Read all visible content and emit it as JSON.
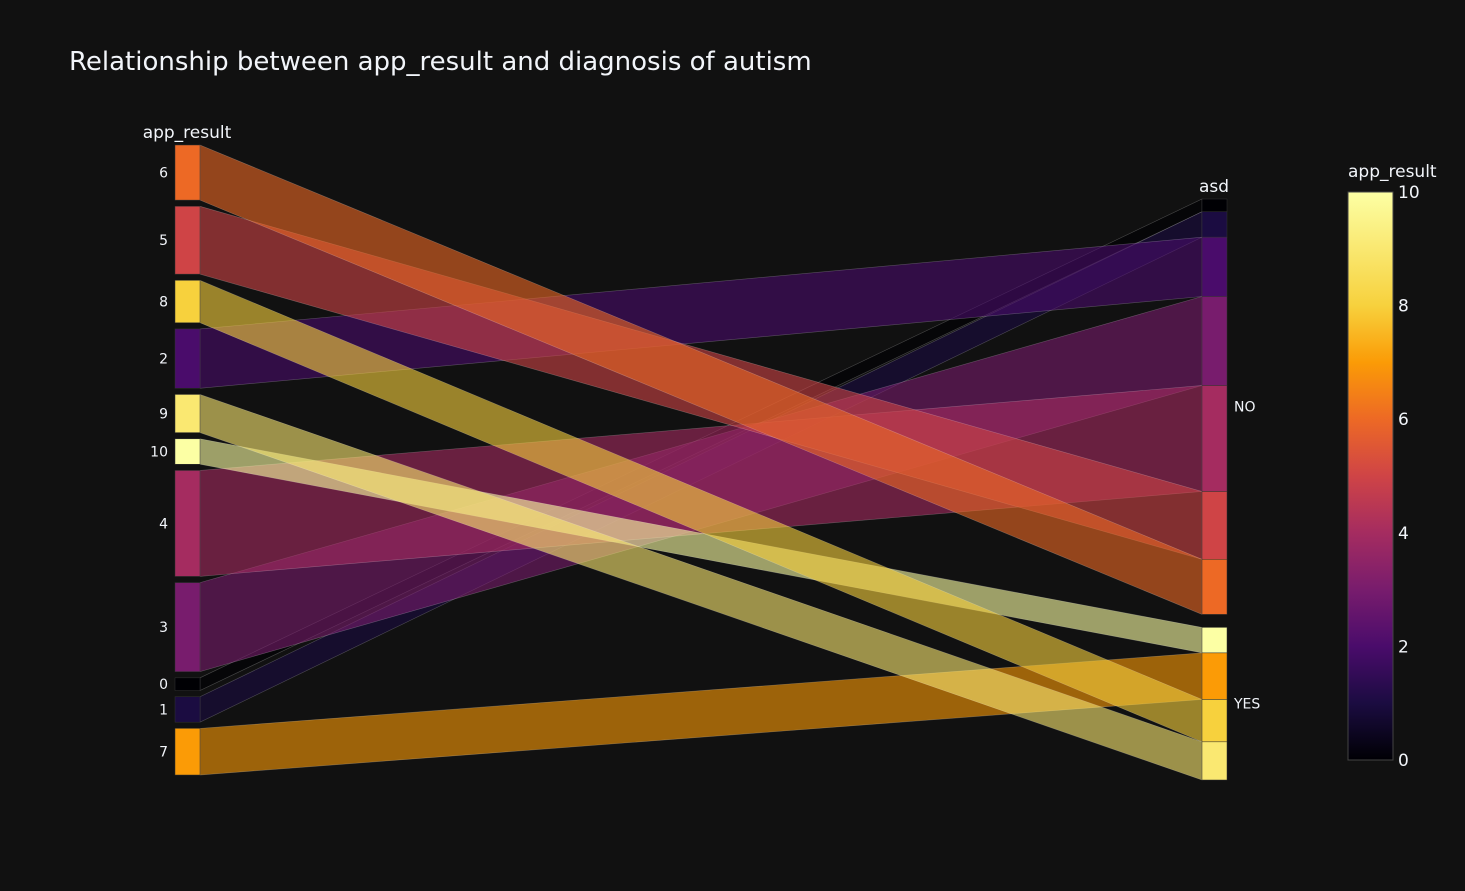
{
  "chart_data": {
    "type": "parallel-categories",
    "title": "Relationship between app_result and diagnosis of autism",
    "dimensions": [
      {
        "name": "app_result",
        "categories": [
          "6",
          "5",
          "8",
          "2",
          "9",
          "10",
          "4",
          "3",
          "0",
          "1",
          "7"
        ]
      },
      {
        "name": "asd",
        "categories": [
          "NO",
          "YES"
        ]
      }
    ],
    "counts": {
      "0": 3,
      "1": 6,
      "2": 14,
      "3": 21,
      "4": 25,
      "5": 16,
      "6": 13,
      "7": 11,
      "8": 10,
      "9": 9,
      "10": 6
    },
    "flows": [
      {
        "app_result": "0",
        "asd": "NO",
        "count": 3
      },
      {
        "app_result": "1",
        "asd": "NO",
        "count": 6
      },
      {
        "app_result": "2",
        "asd": "NO",
        "count": 14
      },
      {
        "app_result": "3",
        "asd": "NO",
        "count": 21
      },
      {
        "app_result": "4",
        "asd": "NO",
        "count": 25
      },
      {
        "app_result": "5",
        "asd": "NO",
        "count": 16
      },
      {
        "app_result": "6",
        "asd": "NO",
        "count": 13
      },
      {
        "app_result": "10",
        "asd": "YES",
        "count": 6
      },
      {
        "app_result": "7",
        "asd": "YES",
        "count": 11
      },
      {
        "app_result": "8",
        "asd": "YES",
        "count": 10
      },
      {
        "app_result": "9",
        "asd": "YES",
        "count": 9
      }
    ],
    "colorbar": {
      "title": "app_result",
      "range": [
        0,
        10
      ],
      "ticks": [
        0,
        2,
        4,
        6,
        8,
        10
      ],
      "colorscale": "inferno"
    }
  }
}
